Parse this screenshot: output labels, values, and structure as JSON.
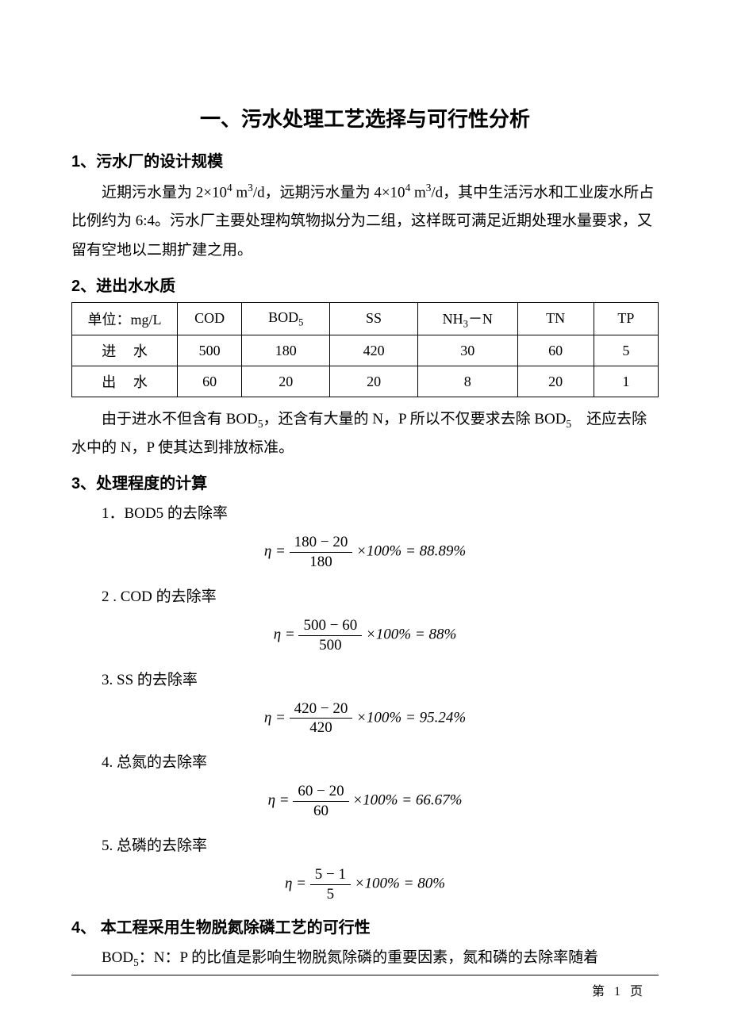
{
  "title": "一、污水处理工艺选择与可行性分析",
  "sec1": {
    "heading": "1、污水厂的设计规模",
    "para_parts": [
      "近期污水量为 2×10",
      "4",
      " m",
      "3",
      "/d，远期污水量为 4×10",
      "4",
      " m",
      "3",
      "/d，其中生活污水和工业废水所占比例约为 6:4。污水厂主要处理构筑物拟分为二组，这样既可满足近期处理水量要求，又留有空地以二期扩建之用。"
    ]
  },
  "sec2": {
    "heading": "2、进出水水质",
    "table": {
      "headers": [
        "单位：mg/L",
        "COD",
        "BOD",
        "5",
        "SS",
        "NH",
        "3",
        "－N",
        "TN",
        "TP"
      ],
      "rows": [
        {
          "label_a": "进",
          "label_b": "水",
          "cells": [
            "500",
            "180",
            "420",
            "30",
            "60",
            "5"
          ]
        },
        {
          "label_a": "出",
          "label_b": "水",
          "cells": [
            "60",
            "20",
            "20",
            "8",
            "20",
            "1"
          ]
        }
      ],
      "col_widths": [
        "18%",
        "11%",
        "15%",
        "15%",
        "17%",
        "13%",
        "11%"
      ]
    },
    "para_parts": [
      "由于进水不但含有 BOD",
      "5",
      "，还含有大量的 N，P 所以不仅要求去除 BOD",
      "5",
      "　还应去除水中的 N，P 使其达到排放标准。"
    ]
  },
  "sec3": {
    "heading": "3、处理程度的计算",
    "items": [
      {
        "label": "1．BOD5 的去除率",
        "num": "180 − 20",
        "den": "180",
        "result": "88.89%"
      },
      {
        "label": "2 . COD 的去除率",
        "num": "500 − 60",
        "den": "500",
        "result": "88%"
      },
      {
        "label": "3. SS 的去除率",
        "num": "420 − 20",
        "den": "420",
        "result": "95.24%"
      },
      {
        "label": "4. 总氮的去除率",
        "num": "60 − 20",
        "den": "60",
        "result": "66.67%"
      },
      {
        "label": "5. 总磷的去除率",
        "num": "5 − 1",
        "den": "5",
        "result": "80%"
      }
    ],
    "eq_prefix": "η",
    "eq_eq": "=",
    "eq_times": "×100% ="
  },
  "sec4": {
    "heading": "4、 本工程采用生物脱氮除磷工艺的可行性",
    "para_parts": [
      "BOD",
      "5",
      "：N：P 的比值是影响生物脱氮除磷的重要因素，氮和磷的去除率随着"
    ]
  },
  "footer": {
    "label_a": "第",
    "num": "1",
    "label_b": "页"
  },
  "colors": {
    "text": "#000000",
    "bg": "#ffffff",
    "border": "#000000"
  },
  "typography": {
    "body_fontsize_pt": 14,
    "title_fontsize_pt": 19,
    "heading_fontsize_pt": 15,
    "font_family_body": "SimSun",
    "font_family_heading": "SimHei",
    "font_family_formula": "Times New Roman"
  }
}
